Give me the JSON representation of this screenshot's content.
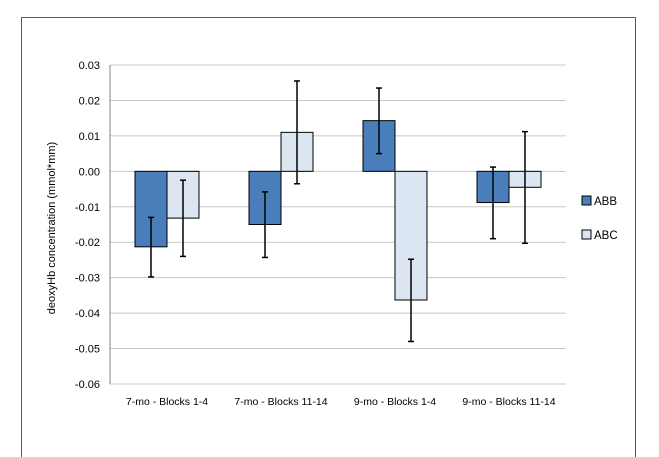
{
  "chart_data": {
    "type": "bar",
    "title": "",
    "xlabel": "",
    "ylabel": "deoxyHb concentration (mmol*mm)",
    "ylim": [
      -0.06,
      0.03
    ],
    "yticks": [
      "0.03",
      "0.02",
      "0.01",
      "0.00",
      "-0.01",
      "-0.02",
      "-0.03",
      "-0.04",
      "-0.05",
      "-0.06"
    ],
    "ytick_values": [
      0.03,
      0.02,
      0.01,
      0.0,
      -0.01,
      -0.02,
      -0.03,
      -0.04,
      -0.05,
      -0.06
    ],
    "grid": true,
    "legend_position": "right",
    "categories": [
      "7-mo - Blocks 1-4",
      "7-mo - Blocks 11-14",
      "9-mo - Blocks 1-4",
      "9-mo - Blocks 11-14"
    ],
    "series": [
      {
        "name": "ABB",
        "color": "#4a7ebb",
        "values": [
          -0.0213,
          -0.015,
          0.0143,
          -0.0088
        ],
        "error_low": [
          -0.0298,
          -0.0243,
          0.005,
          -0.019
        ],
        "error_high": [
          -0.013,
          -0.0058,
          0.0235,
          0.0012
        ]
      },
      {
        "name": "ABC",
        "color": "#dce6f2",
        "values": [
          -0.0132,
          0.011,
          -0.0363,
          -0.0045
        ],
        "error_low": [
          -0.024,
          -0.0035,
          -0.048,
          -0.0203
        ],
        "error_high": [
          -0.0025,
          0.0255,
          -0.0248,
          0.0112
        ]
      }
    ]
  }
}
